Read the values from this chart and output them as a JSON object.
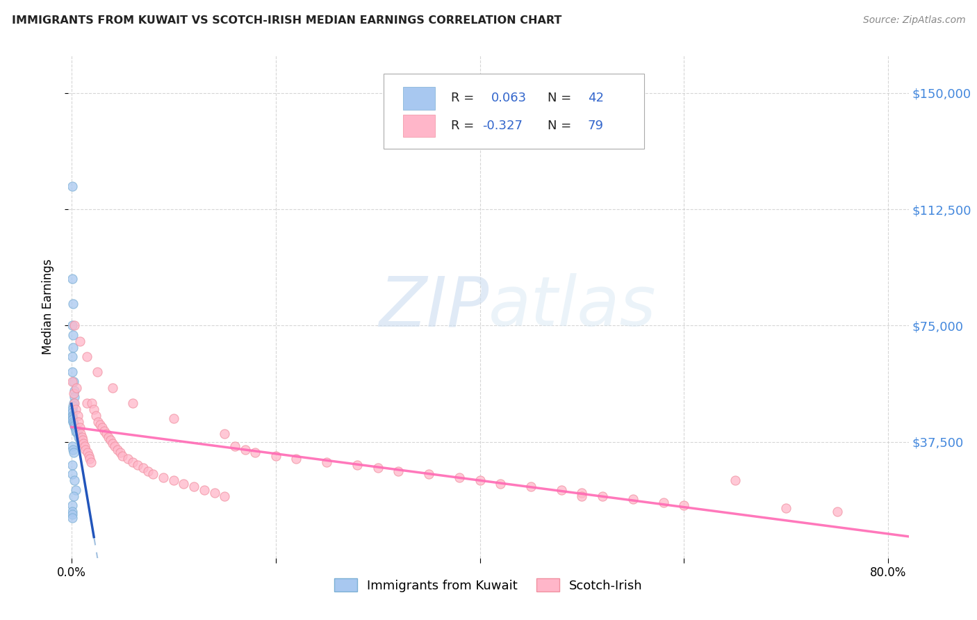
{
  "title": "IMMIGRANTS FROM KUWAIT VS SCOTCH-IRISH MEDIAN EARNINGS CORRELATION CHART",
  "source": "Source: ZipAtlas.com",
  "ylabel": "Median Earnings",
  "ylim": [
    0,
    162000
  ],
  "xlim": [
    -0.003,
    0.82
  ],
  "ytick_vals": [
    37500,
    75000,
    112500,
    150000
  ],
  "ytick_labels": [
    "$37,500",
    "$75,000",
    "$112,500",
    "$150,000"
  ],
  "xtick_vals": [
    0.0,
    0.2,
    0.4,
    0.6,
    0.8
  ],
  "xtick_labels": [
    "0.0%",
    "",
    "",
    "",
    "80.0%"
  ],
  "blue_scatter_color": "#a8c8f0",
  "blue_scatter_edge": "#7bafd4",
  "pink_scatter_color": "#ffb6c9",
  "pink_scatter_edge": "#f090a0",
  "blue_trend_color": "#5090e0",
  "blue_solid_color": "#2255bb",
  "pink_trend_color": "#ff69b4",
  "dashed_color": "#99bbdd",
  "grid_color": "#cccccc",
  "right_tick_color": "#4488dd",
  "watermark_color": "#ccddf0",
  "legend_r1_black": "R = ",
  "legend_r1_blue": "0.063",
  "legend_n1_black": "  N = ",
  "legend_n1_blue": "42",
  "legend_r2_black": "R = ",
  "legend_r2_blue": "-0.327",
  "legend_n2_black": "  N = ",
  "legend_n2_blue": "79",
  "kuwait_x": [
    0.0008,
    0.001,
    0.0012,
    0.0005,
    0.0015,
    0.0018,
    0.001,
    0.0008,
    0.002,
    0.0025,
    0.003,
    0.002,
    0.0015,
    0.001,
    0.0005,
    0.0008,
    0.001,
    0.0012,
    0.0008,
    0.0015,
    0.002,
    0.0025,
    0.003,
    0.0035,
    0.004,
    0.0045,
    0.005,
    0.006,
    0.007,
    0.008,
    0.001,
    0.0015,
    0.002,
    0.0008,
    0.001,
    0.003,
    0.004,
    0.002,
    0.001,
    0.0008,
    0.0006,
    0.0005
  ],
  "kuwait_y": [
    120000,
    90000,
    82000,
    75000,
    72000,
    68000,
    65000,
    60000,
    57000,
    54000,
    52000,
    50000,
    49000,
    48000,
    47000,
    46000,
    45500,
    45000,
    44500,
    44000,
    43500,
    43000,
    42500,
    42000,
    41500,
    41000,
    40500,
    40000,
    39000,
    38000,
    36000,
    35000,
    34000,
    30000,
    27000,
    25000,
    22000,
    20000,
    17000,
    15000,
    14000,
    13000
  ],
  "scotch_x": [
    0.001,
    0.002,
    0.003,
    0.004,
    0.005,
    0.006,
    0.007,
    0.008,
    0.009,
    0.01,
    0.011,
    0.012,
    0.013,
    0.014,
    0.015,
    0.016,
    0.017,
    0.018,
    0.019,
    0.02,
    0.022,
    0.024,
    0.026,
    0.028,
    0.03,
    0.032,
    0.034,
    0.036,
    0.038,
    0.04,
    0.042,
    0.045,
    0.048,
    0.05,
    0.055,
    0.06,
    0.065,
    0.07,
    0.075,
    0.08,
    0.09,
    0.1,
    0.11,
    0.12,
    0.13,
    0.14,
    0.15,
    0.16,
    0.17,
    0.18,
    0.2,
    0.22,
    0.25,
    0.28,
    0.3,
    0.32,
    0.35,
    0.38,
    0.4,
    0.42,
    0.45,
    0.48,
    0.5,
    0.52,
    0.55,
    0.58,
    0.6,
    0.65,
    0.7,
    0.75,
    0.003,
    0.008,
    0.015,
    0.025,
    0.04,
    0.06,
    0.1,
    0.15,
    0.5
  ],
  "scotch_y": [
    57000,
    53000,
    50000,
    48000,
    55000,
    46000,
    44000,
    42000,
    40000,
    39000,
    38000,
    37000,
    36000,
    35000,
    50000,
    34000,
    33000,
    32000,
    31000,
    50000,
    48000,
    46000,
    44000,
    43000,
    42000,
    41000,
    40000,
    39000,
    38000,
    37000,
    36000,
    35000,
    34000,
    33000,
    32000,
    31000,
    30000,
    29000,
    28000,
    27000,
    26000,
    25000,
    24000,
    23000,
    22000,
    21000,
    20000,
    36000,
    35000,
    34000,
    33000,
    32000,
    31000,
    30000,
    29000,
    28000,
    27000,
    26000,
    25000,
    24000,
    23000,
    22000,
    21000,
    20000,
    19000,
    18000,
    17000,
    25000,
    16000,
    15000,
    75000,
    70000,
    65000,
    60000,
    55000,
    50000,
    45000,
    40000,
    20000
  ]
}
